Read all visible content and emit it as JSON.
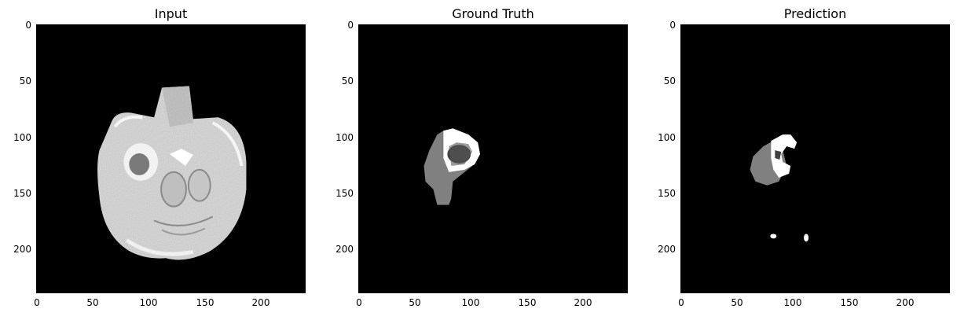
{
  "panels": [
    {
      "title": "Input"
    },
    {
      "title": "Ground Truth"
    },
    {
      "title": "Prediction"
    }
  ],
  "yticks": [
    "0",
    "50",
    "100",
    "150",
    "200"
  ],
  "xticks": [
    "0",
    "50",
    "100",
    "150",
    "200"
  ],
  "colors": {
    "background": "#000000",
    "tissue_light": "#d9d9d9",
    "tissue_mid": "#a6a6a6",
    "label_gray": "#808080",
    "label_dark": "#404040",
    "label_white": "#ffffff"
  }
}
